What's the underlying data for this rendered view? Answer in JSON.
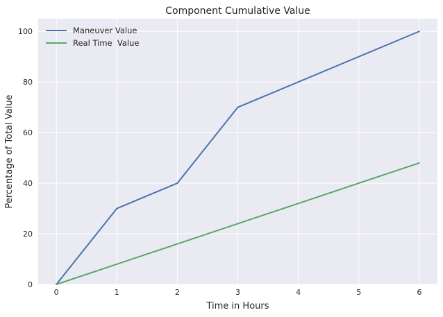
{
  "chart_data": {
    "type": "line",
    "title": "Component Cumulative Value",
    "xlabel": "Time in Hours",
    "ylabel": "Percentage of Total Value",
    "x": [
      0,
      1,
      2,
      3,
      4,
      5,
      6
    ],
    "xlim": [
      -0.3,
      6.3
    ],
    "ylim": [
      0,
      105
    ],
    "xticks": [
      "0",
      "1",
      "2",
      "3",
      "4",
      "5",
      "6"
    ],
    "yticks": [
      "0",
      "20",
      "40",
      "60",
      "80",
      "100"
    ],
    "grid": true,
    "legend_position": "top-left",
    "background": "#eaeaf2",
    "series": [
      {
        "name": "Maneuver Value",
        "color": "#4c72b0",
        "values": [
          0,
          30,
          40,
          70,
          80,
          90,
          100
        ]
      },
      {
        "name": "Real Time  Value",
        "color": "#55a868",
        "values": [
          0,
          8,
          16,
          24,
          32,
          40,
          48
        ]
      }
    ]
  }
}
